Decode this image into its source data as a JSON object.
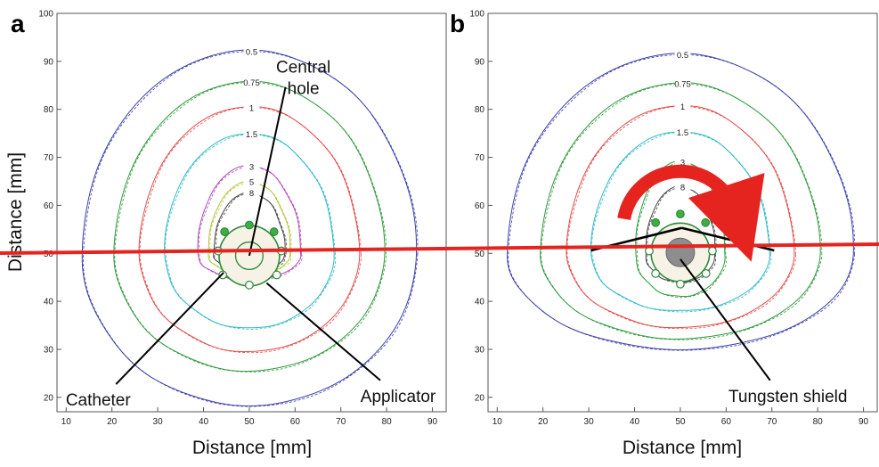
{
  "chart_data": [
    {
      "panel": "a",
      "type": "line",
      "xlabel": "Distance [mm]",
      "ylabel": "Distance [mm]",
      "xlim": [
        8,
        93
      ],
      "ylim": [
        17,
        100
      ],
      "x_ticks": [
        10,
        20,
        30,
        40,
        50,
        60,
        70,
        80,
        90
      ],
      "y_ticks": [
        20,
        30,
        40,
        50,
        60,
        70,
        80,
        90,
        100
      ],
      "applicator": {
        "center": [
          50,
          49.5
        ],
        "radius": 6.6,
        "central_hole_radius": 3.0
      },
      "catheters": [
        {
          "x": 50.0,
          "y": 55.9,
          "filled": true
        },
        {
          "x": 55.4,
          "y": 54.5,
          "filled": true
        },
        {
          "x": 57.0,
          "y": 50.5,
          "filled": false
        },
        {
          "x": 56.0,
          "y": 45.5,
          "filled": false
        },
        {
          "x": 50.0,
          "y": 43.4,
          "filled": false
        },
        {
          "x": 44.2,
          "y": 45.5,
          "filled": false
        },
        {
          "x": 43.2,
          "y": 50.5,
          "filled": false
        },
        {
          "x": 44.6,
          "y": 54.5,
          "filled": true
        }
      ],
      "isodose": [
        {
          "label": "0.5",
          "color": "#3b3fa8",
          "top": 92.3,
          "bottom": 18.3,
          "half_width": 36.5,
          "label_pos": [
            50.5,
            92.0
          ]
        },
        {
          "label": "0.75",
          "color": "#2f9a3c",
          "top": 85.8,
          "bottom": 25.5,
          "half_width": 29.5,
          "label_pos": [
            50.5,
            85.6
          ]
        },
        {
          "label": "1",
          "color": "#e04b4b",
          "top": 80.6,
          "bottom": 29.5,
          "half_width": 24.0,
          "label_pos": [
            50.5,
            80.3
          ]
        },
        {
          "label": "1.5",
          "color": "#2fb8c8",
          "top": 75.0,
          "bottom": 34.4,
          "half_width": 18.5,
          "label_pos": [
            50.5,
            74.8
          ]
        },
        {
          "label": "3",
          "color": "#b04ab8",
          "top": 68.3,
          "bottom": 44.5,
          "half_width": 11.3,
          "label_pos": [
            50.5,
            68.1
          ]
        },
        {
          "label": "5",
          "color": "#b8c43c",
          "top": 65.0,
          "bottom": 45.5,
          "half_width": 9.0,
          "label_pos": [
            50.5,
            64.9
          ]
        },
        {
          "label": "8",
          "color": "#444444",
          "top": 62.7,
          "bottom": 46.0,
          "half_width": 7.8,
          "label_pos": [
            50.5,
            62.6
          ]
        }
      ],
      "annotations": [
        {
          "text": [
            "Central",
            "hole"
          ],
          "text_pos": [
            61.8,
            86.5
          ],
          "points_to": [
            50.0,
            49.5
          ]
        },
        {
          "text": [
            "Catheter"
          ],
          "text_pos": [
            17.0,
            19.4
          ],
          "points_to": [
            44.4,
            46.0
          ]
        },
        {
          "text": [
            "Applicator"
          ],
          "text_pos": [
            82.5,
            20.2
          ],
          "points_to": [
            53.8,
            43.8
          ]
        }
      ],
      "reference_line_y": 49.8
    },
    {
      "panel": "b",
      "type": "line",
      "xlabel": "Distance [mm]",
      "ylabel": "",
      "xlim": [
        8,
        93
      ],
      "ylim": [
        17,
        100
      ],
      "x_ticks": [
        10,
        20,
        30,
        40,
        50,
        60,
        70,
        80,
        90
      ],
      "y_ticks": [
        20,
        30,
        40,
        50,
        60,
        70,
        80,
        90,
        100
      ],
      "applicator": {
        "center": [
          50,
          50.2
        ],
        "radius": 6.4,
        "shield_radius": 3.1
      },
      "catheters": [
        {
          "x": 50.0,
          "y": 58.2,
          "filled": true
        },
        {
          "x": 55.5,
          "y": 56.4,
          "filled": true
        },
        {
          "x": 57.0,
          "y": 50.5,
          "filled": false
        },
        {
          "x": 55.6,
          "y": 45.8,
          "filled": false
        },
        {
          "x": 50.0,
          "y": 43.6,
          "filled": false
        },
        {
          "x": 44.6,
          "y": 45.8,
          "filled": false
        },
        {
          "x": 43.2,
          "y": 50.5,
          "filled": false
        },
        {
          "x": 44.6,
          "y": 56.4,
          "filled": true
        }
      ],
      "isodose": [
        {
          "label": "0.5",
          "color": "#3b3fa8",
          "top": 91.6,
          "bottom": 30.0,
          "half_width": 37.8,
          "label_pos": [
            50.5,
            91.4
          ]
        },
        {
          "label": "0.75",
          "color": "#2f9a3c",
          "top": 85.5,
          "bottom": 32.2,
          "half_width": 30.5,
          "label_pos": [
            50.5,
            85.3
          ]
        },
        {
          "label": "1",
          "color": "#e04b4b",
          "top": 80.8,
          "bottom": 34.5,
          "half_width": 24.8,
          "label_pos": [
            50.5,
            80.6
          ]
        },
        {
          "label": "1.5",
          "color": "#2fb8c8",
          "top": 75.4,
          "bottom": 38.0,
          "half_width": 19.5,
          "label_pos": [
            50.5,
            75.2
          ]
        },
        {
          "label": "3",
          "color": "#2f9a3c",
          "top": 69.2,
          "bottom": 41.0,
          "half_width": 9.8,
          "label_pos": [
            50.5,
            69.0
          ]
        },
        {
          "label": "8",
          "color": "#444444",
          "top": 64.0,
          "bottom": 44.0,
          "half_width": 7.6,
          "label_pos": [
            50.5,
            63.8
          ]
        }
      ],
      "annotations": [
        {
          "text": [
            "Tungsten shield"
          ],
          "text_pos": [
            73.5,
            20.2
          ],
          "points_to": [
            50.0,
            48.8
          ]
        }
      ],
      "shield_angle_lines": [
        [
          [
            30.5,
            50.6
          ],
          [
            50.3,
            55.3
          ]
        ],
        [
          [
            50.3,
            55.3
          ],
          [
            70.5,
            50.6
          ]
        ]
      ],
      "arrow": {
        "center": [
          50,
          55
        ],
        "radius": 12.5,
        "from_deg": 170,
        "to_deg": 18,
        "color": "#e52420"
      },
      "reference_line_y": 50.3
    }
  ]
}
